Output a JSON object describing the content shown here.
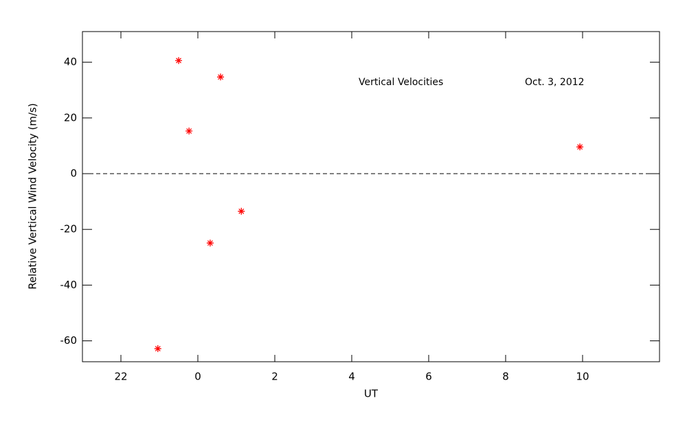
{
  "chart_data": {
    "type": "scatter",
    "xlabel": "UT",
    "ylabel": "Relative Vertical Wind Velocity (m/s)",
    "annotations": [
      "Vertical Velocities",
      "Oct. 3, 2012"
    ],
    "x": [
      -1.04,
      -0.5,
      -0.23,
      0.32,
      0.59,
      1.13,
      9.93
    ],
    "values": [
      -62.8,
      40.6,
      15.3,
      -24.9,
      34.7,
      -13.5,
      9.6
    ],
    "color": "#ff0000",
    "xlim": [
      -3,
      12
    ],
    "xticks": [
      {
        "value": -2,
        "label": "22"
      },
      0,
      2,
      4,
      6,
      8,
      10
    ],
    "ylim": [
      -67.5,
      51
    ],
    "yticks": [
      -60,
      -40,
      -20,
      0,
      20,
      40
    ],
    "reference_line": 0
  }
}
